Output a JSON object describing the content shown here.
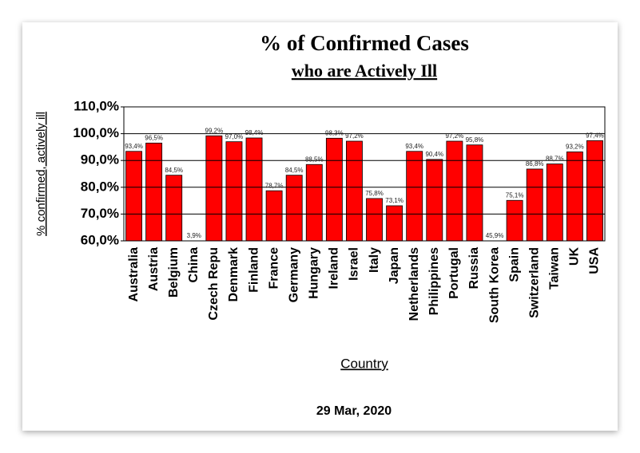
{
  "chart_data": {
    "type": "bar",
    "title": "% of Confirmed Cases",
    "subtitle": "who are Actively Ill",
    "y_label": "% confirmed, actively ill",
    "x_label": "Country",
    "date": "29 Mar, 2020",
    "categories": [
      "Australia",
      "Austria",
      "Belgium",
      "China",
      "Czech Repu",
      "Denmark",
      "Finland",
      "France",
      "Germany",
      "Hungary",
      "Ireland",
      "Israel",
      "Italy",
      "Japan",
      "Netherlands",
      "Philippines",
      "Portugal",
      "Russia",
      "South Korea",
      "Spain",
      "Switzerland",
      "Taiwan",
      "UK",
      "USA"
    ],
    "values": [
      93.4,
      96.5,
      84.5,
      3.9,
      99.2,
      97.0,
      98.4,
      78.7,
      84.5,
      88.5,
      98.3,
      97.2,
      75.8,
      73.1,
      93.4,
      90.4,
      97.2,
      95.8,
      45.9,
      75.1,
      86.8,
      88.7,
      93.2,
      97.4
    ],
    "value_labels": [
      "93,4%",
      "96,5%",
      "84,5%",
      "3,9%",
      "99,2%",
      "97,0%",
      "98,4%",
      "78,7%",
      "84,5%",
      "88,5%",
      "98,3%",
      "97,2%",
      "75,8%",
      "73,1%",
      "93,4%",
      "90,4%",
      "97,2%",
      "95,8%",
      "45,9%",
      "75,1%",
      "86,8%",
      "88,7%",
      "93,2%",
      "97,4%"
    ],
    "color": "#ff0000",
    "ylim": [
      60,
      110
    ],
    "yticks": [
      {
        "value": 60,
        "label": "60,0%"
      },
      {
        "value": 70,
        "label": "70,0%"
      },
      {
        "value": 80,
        "label": "80,0%"
      },
      {
        "value": 90,
        "label": "90,0%"
      },
      {
        "value": 100,
        "label": "100,0%"
      },
      {
        "value": 110,
        "label": "110,0%"
      }
    ],
    "grid": true
  }
}
